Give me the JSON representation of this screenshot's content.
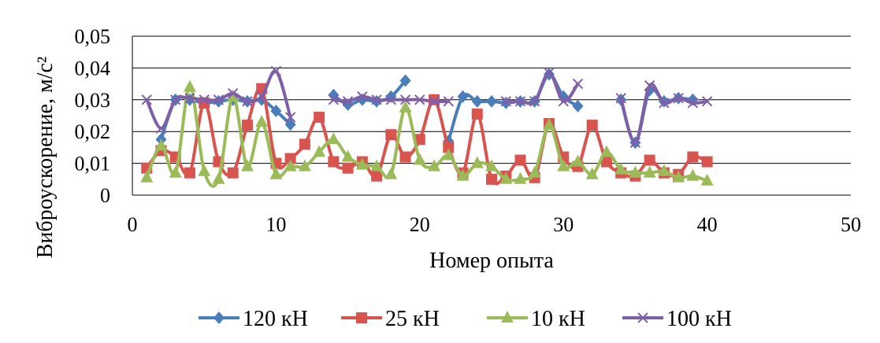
{
  "chart_data": {
    "type": "line",
    "title": "",
    "xlabel": "Номер опыта",
    "ylabel": "Виброускорение, м/с²",
    "xlim": [
      0,
      50
    ],
    "ylim": [
      0,
      0.05
    ],
    "x_ticks": [
      0,
      10,
      20,
      30,
      40,
      50
    ],
    "x_tick_labels": [
      "0",
      "10",
      "20",
      "30",
      "40",
      "50"
    ],
    "y_ticks": [
      0,
      0.01,
      0.02,
      0.03,
      0.04,
      0.05
    ],
    "y_tick_labels": [
      "0",
      "0,01",
      "0,02",
      "0,03",
      "0,04",
      "0,05"
    ],
    "grid": "horizontal",
    "legend_position": "bottom",
    "smooth": true,
    "series": [
      {
        "name": "120 кН",
        "color": "#4a7ebb",
        "marker": "diamond",
        "points": [
          [
            2,
            0.0175
          ],
          [
            3,
            0.03
          ],
          [
            4,
            0.03
          ],
          [
            5,
            0.029
          ],
          [
            6,
            0.0295
          ],
          [
            7,
            0.03
          ],
          [
            8,
            0.0295
          ],
          [
            9,
            0.03
          ],
          [
            10,
            0.0265
          ],
          [
            11,
            0.0222
          ],
          null,
          [
            14,
            0.0315
          ],
          [
            15,
            0.0285
          ],
          [
            16,
            0.03
          ],
          [
            17,
            0.0295
          ],
          [
            18,
            0.031
          ],
          [
            19,
            0.036
          ],
          null,
          [
            22,
            0.017
          ],
          [
            23,
            0.031
          ],
          [
            24,
            0.0295
          ],
          [
            25,
            0.0295
          ],
          [
            26,
            0.029
          ],
          [
            27,
            0.0295
          ],
          [
            28,
            0.0295
          ],
          [
            29,
            0.038
          ],
          [
            30,
            0.031
          ],
          [
            31,
            0.028
          ],
          null,
          [
            34,
            0.03
          ],
          [
            35,
            0.0165
          ],
          [
            36,
            0.033
          ],
          [
            37,
            0.0295
          ],
          [
            38,
            0.0305
          ],
          [
            39,
            0.03
          ]
        ]
      },
      {
        "name": "25 кН",
        "color": "#d9534f",
        "marker": "square",
        "points": [
          [
            1,
            0.0085
          ],
          [
            2,
            0.014
          ],
          [
            3,
            0.012
          ],
          [
            4,
            0.007
          ],
          [
            5,
            0.029
          ],
          [
            6,
            0.0105
          ],
          [
            7,
            0.007
          ],
          [
            8,
            0.022
          ],
          [
            9,
            0.0335
          ],
          [
            10,
            0.01
          ],
          [
            11,
            0.0115
          ],
          [
            12,
            0.016
          ],
          [
            13,
            0.0245
          ],
          [
            14,
            0.0105
          ],
          [
            15,
            0.0085
          ],
          [
            16,
            0.0105
          ],
          [
            17,
            0.006
          ],
          [
            18,
            0.019
          ],
          [
            19,
            0.012
          ],
          [
            20,
            0.0175
          ],
          [
            21,
            0.03
          ],
          [
            22,
            0.015
          ],
          [
            23,
            0.007
          ],
          [
            24,
            0.0255
          ],
          [
            25,
            0.005
          ],
          [
            26,
            0.006
          ],
          [
            27,
            0.011
          ],
          [
            28,
            0.0055
          ],
          [
            29,
            0.0225
          ],
          [
            30,
            0.012
          ],
          [
            31,
            0.009
          ],
          [
            32,
            0.022
          ],
          [
            33,
            0.0105
          ],
          [
            34,
            0.007
          ],
          [
            35,
            0.006
          ],
          [
            36,
            0.011
          ],
          [
            37,
            0.007
          ],
          [
            38,
            0.0065
          ],
          [
            39,
            0.012
          ],
          [
            40,
            0.0105
          ]
        ]
      },
      {
        "name": "10 кН",
        "color": "#9bbb59",
        "marker": "triangle",
        "points": [
          [
            1,
            0.0055
          ],
          [
            2,
            0.0155
          ],
          [
            3,
            0.007
          ],
          [
            4,
            0.034
          ],
          [
            5,
            0.0075
          ],
          [
            6,
            0.005
          ],
          [
            7,
            0.031
          ],
          [
            8,
            0.009
          ],
          [
            9,
            0.023
          ],
          [
            10,
            0.0065
          ],
          [
            11,
            0.009
          ],
          [
            12,
            0.009
          ],
          [
            13,
            0.0135
          ],
          [
            14,
            0.0175
          ],
          [
            15,
            0.012
          ],
          [
            16,
            0.0095
          ],
          [
            17,
            0.009
          ],
          [
            18,
            0.0065
          ],
          [
            19,
            0.0275
          ],
          [
            20,
            0.011
          ],
          [
            21,
            0.009
          ],
          [
            22,
            0.0125
          ],
          [
            23,
            0.006
          ],
          [
            24,
            0.01
          ],
          [
            25,
            0.009
          ],
          [
            26,
            0.005
          ],
          [
            27,
            0.005
          ],
          [
            28,
            0.007
          ],
          [
            29,
            0.022
          ],
          [
            30,
            0.009
          ],
          [
            31,
            0.0105
          ],
          [
            32,
            0.0065
          ],
          [
            33,
            0.0135
          ],
          [
            34,
            0.008
          ],
          [
            35,
            0.007
          ],
          [
            36,
            0.007
          ],
          [
            37,
            0.0075
          ],
          [
            38,
            0.0055
          ],
          [
            39,
            0.006
          ],
          [
            40,
            0.0045
          ]
        ]
      },
      {
        "name": "100 кН",
        "color": "#7f5fa8",
        "marker": "x",
        "points": [
          [
            1,
            0.03
          ],
          [
            2,
            0.021
          ],
          [
            3,
            0.03
          ],
          [
            4,
            0.0305
          ],
          [
            5,
            0.03
          ],
          [
            6,
            0.03
          ],
          [
            7,
            0.032
          ],
          [
            8,
            0.0295
          ],
          [
            9,
            0.031
          ],
          [
            10,
            0.039
          ],
          [
            11,
            0.0245
          ],
          null,
          [
            14,
            0.03
          ],
          [
            15,
            0.0295
          ],
          [
            16,
            0.031
          ],
          [
            17,
            0.03
          ],
          [
            18,
            0.03
          ],
          [
            19,
            0.03
          ],
          [
            20,
            0.03
          ],
          [
            21,
            0.0295
          ],
          [
            22,
            0.0295
          ],
          null,
          [
            26,
            0.0295
          ],
          [
            27,
            0.0295
          ],
          [
            28,
            0.0295
          ],
          [
            29,
            0.0385
          ],
          [
            30,
            0.0295
          ],
          [
            31,
            0.035
          ],
          null,
          [
            34,
            0.0305
          ],
          [
            35,
            0.0165
          ],
          [
            36,
            0.0345
          ],
          [
            37,
            0.029
          ],
          [
            38,
            0.0305
          ],
          [
            39,
            0.029
          ],
          [
            40,
            0.0295
          ]
        ]
      }
    ]
  }
}
